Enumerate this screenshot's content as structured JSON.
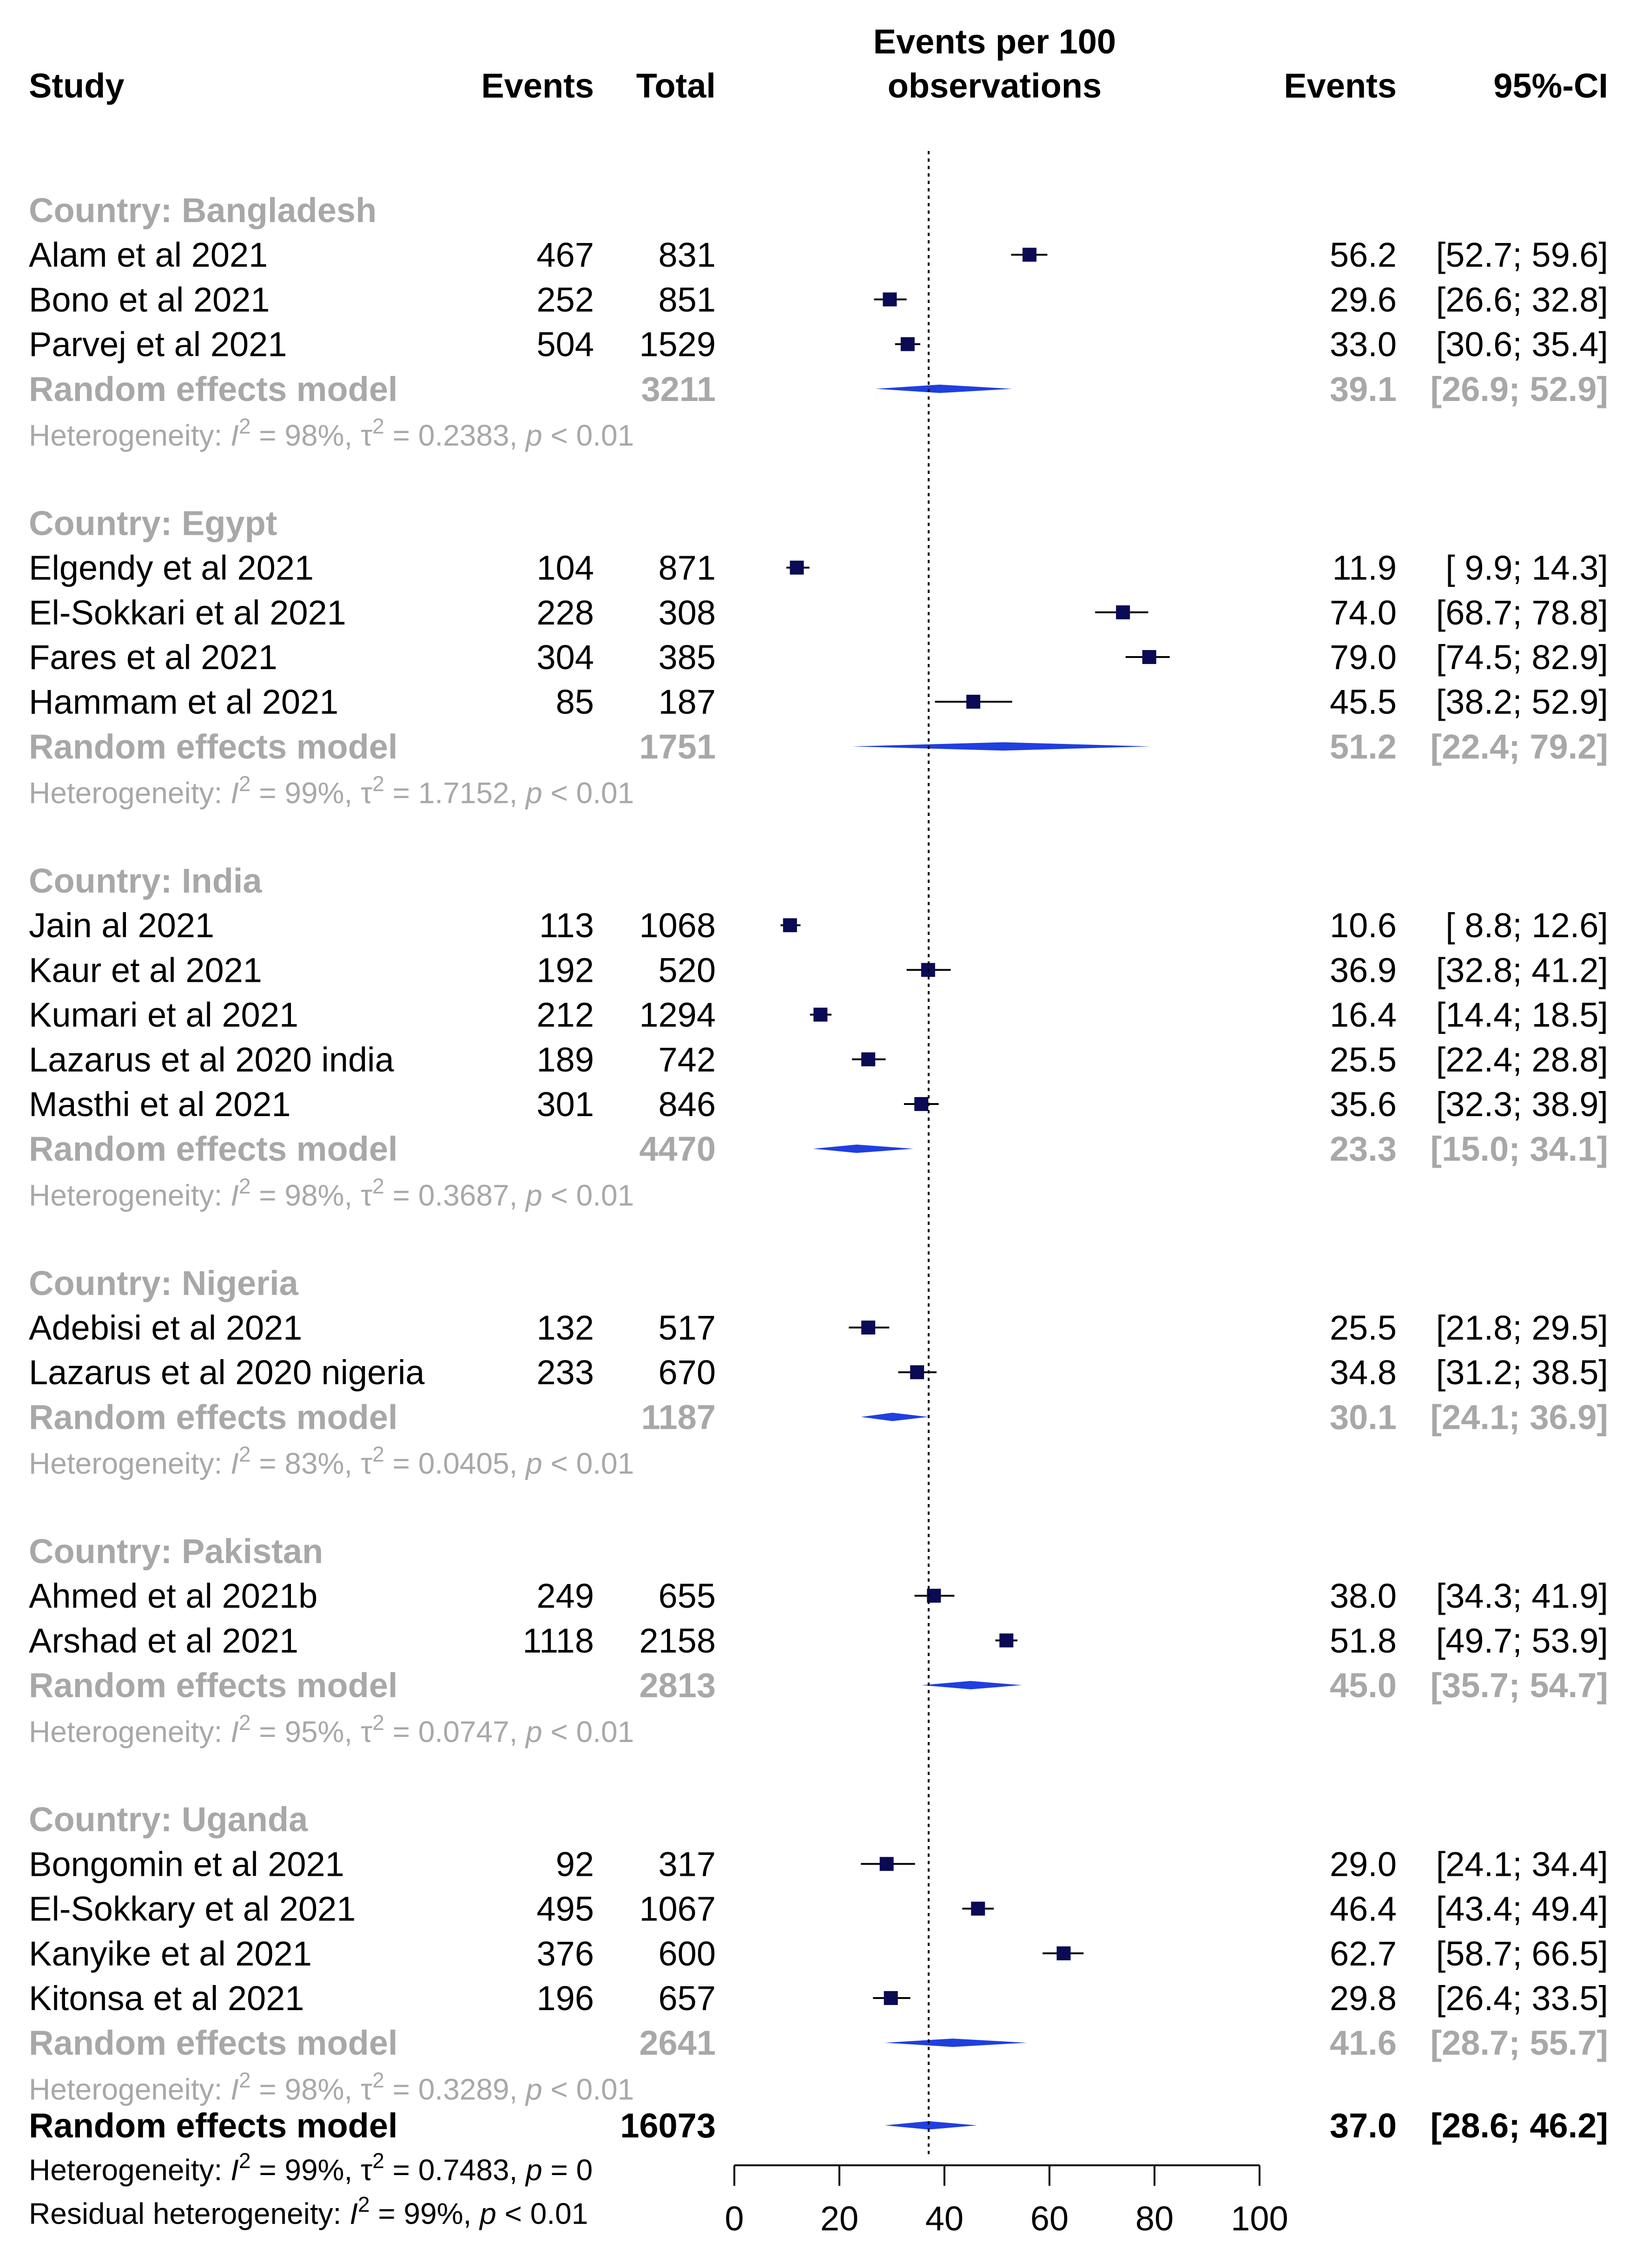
{
  "chart_data": {
    "type": "forest",
    "title": "Events per 100 observations",
    "columns": [
      "Study",
      "Events",
      "Total",
      "Events per 100 observations",
      "Events",
      "95%-CI"
    ],
    "xaxis": {
      "range": [
        0,
        100
      ],
      "ticks": [
        0,
        20,
        40,
        60,
        80,
        100
      ]
    },
    "reference_line": 37.0,
    "groups": [
      {
        "label": "Country: Bangladesh",
        "studies": [
          {
            "study": "Alam et al 2021",
            "events": 467,
            "total": 831,
            "est": 56.2,
            "lo": 52.7,
            "hi": 59.6,
            "events_txt": "56.2",
            "ci_txt": "[52.7; 59.6]"
          },
          {
            "study": "Bono et al 2021",
            "events": 252,
            "total": 851,
            "est": 29.6,
            "lo": 26.6,
            "hi": 32.8,
            "events_txt": "29.6",
            "ci_txt": "[26.6; 32.8]"
          },
          {
            "study": "Parvej et al 2021",
            "events": 504,
            "total": 1529,
            "est": 33.0,
            "lo": 30.6,
            "hi": 35.4,
            "events_txt": "33.0",
            "ci_txt": "[30.6; 35.4]"
          }
        ],
        "pooled": {
          "label": "Random effects model",
          "total": 3211,
          "est": 39.1,
          "lo": 26.9,
          "hi": 52.9,
          "events_txt": "39.1",
          "ci_txt": "[26.9; 52.9]"
        },
        "het": {
          "prefix": "Heterogeneity: ",
          "i2": "I",
          "sup": "2",
          "i2_rest": " = 98%, τ",
          "tau_rest": " = 0.2383, ",
          "p": "p",
          "p_rest": " < 0.01"
        }
      },
      {
        "label": "Country: Egypt",
        "studies": [
          {
            "study": "Elgendy et al 2021",
            "events": 104,
            "total": 871,
            "est": 11.9,
            "lo": 9.9,
            "hi": 14.3,
            "events_txt": "11.9",
            "ci_txt": "[ 9.9; 14.3]"
          },
          {
            "study": "El-Sokkari et al 2021",
            "events": 228,
            "total": 308,
            "est": 74.0,
            "lo": 68.7,
            "hi": 78.8,
            "events_txt": "74.0",
            "ci_txt": "[68.7; 78.8]"
          },
          {
            "study": "Fares et al 2021",
            "events": 304,
            "total": 385,
            "est": 79.0,
            "lo": 74.5,
            "hi": 82.9,
            "events_txt": "79.0",
            "ci_txt": "[74.5; 82.9]"
          },
          {
            "study": "Hammam et al 2021",
            "events": 85,
            "total": 187,
            "est": 45.5,
            "lo": 38.2,
            "hi": 52.9,
            "events_txt": "45.5",
            "ci_txt": "[38.2; 52.9]"
          }
        ],
        "pooled": {
          "label": "Random effects model",
          "total": 1751,
          "est": 51.2,
          "lo": 22.4,
          "hi": 79.2,
          "events_txt": "51.2",
          "ci_txt": "[22.4; 79.2]"
        },
        "het": {
          "prefix": "Heterogeneity: ",
          "i2": "I",
          "sup": "2",
          "i2_rest": " = 99%, τ",
          "tau_rest": " = 1.7152, ",
          "p": "p",
          "p_rest": " < 0.01"
        }
      },
      {
        "label": "Country: India",
        "studies": [
          {
            "study": "Jain al 2021",
            "events": 113,
            "total": 1068,
            "est": 10.6,
            "lo": 8.8,
            "hi": 12.6,
            "events_txt": "10.6",
            "ci_txt": "[ 8.8; 12.6]"
          },
          {
            "study": "Kaur et al 2021",
            "events": 192,
            "total": 520,
            "est": 36.9,
            "lo": 32.8,
            "hi": 41.2,
            "events_txt": "36.9",
            "ci_txt": "[32.8; 41.2]"
          },
          {
            "study": "Kumari et al 2021",
            "events": 212,
            "total": 1294,
            "est": 16.4,
            "lo": 14.4,
            "hi": 18.5,
            "events_txt": "16.4",
            "ci_txt": "[14.4; 18.5]"
          },
          {
            "study": "Lazarus et al 2020 india",
            "events": 189,
            "total": 742,
            "est": 25.5,
            "lo": 22.4,
            "hi": 28.8,
            "events_txt": "25.5",
            "ci_txt": "[22.4; 28.8]"
          },
          {
            "study": "Masthi et al 2021",
            "events": 301,
            "total": 846,
            "est": 35.6,
            "lo": 32.3,
            "hi": 38.9,
            "events_txt": "35.6",
            "ci_txt": "[32.3; 38.9]"
          }
        ],
        "pooled": {
          "label": "Random effects model",
          "total": 4470,
          "est": 23.3,
          "lo": 15.0,
          "hi": 34.1,
          "events_txt": "23.3",
          "ci_txt": "[15.0; 34.1]"
        },
        "het": {
          "prefix": "Heterogeneity: ",
          "i2": "I",
          "sup": "2",
          "i2_rest": " = 98%, τ",
          "tau_rest": " = 0.3687, ",
          "p": "p",
          "p_rest": " < 0.01"
        }
      },
      {
        "label": "Country: Nigeria",
        "studies": [
          {
            "study": "Adebisi et al 2021",
            "events": 132,
            "total": 517,
            "est": 25.5,
            "lo": 21.8,
            "hi": 29.5,
            "events_txt": "25.5",
            "ci_txt": "[21.8; 29.5]"
          },
          {
            "study": "Lazarus et al 2020 nigeria",
            "events": 233,
            "total": 670,
            "est": 34.8,
            "lo": 31.2,
            "hi": 38.5,
            "events_txt": "34.8",
            "ci_txt": "[31.2; 38.5]"
          }
        ],
        "pooled": {
          "label": "Random effects model",
          "total": 1187,
          "est": 30.1,
          "lo": 24.1,
          "hi": 36.9,
          "events_txt": "30.1",
          "ci_txt": "[24.1; 36.9]"
        },
        "het": {
          "prefix": "Heterogeneity: ",
          "i2": "I",
          "sup": "2",
          "i2_rest": " = 83%, τ",
          "tau_rest": " = 0.0405, ",
          "p": "p",
          "p_rest": " < 0.01"
        }
      },
      {
        "label": "Country: Pakistan",
        "studies": [
          {
            "study": "Ahmed et al 2021b",
            "events": 249,
            "total": 655,
            "est": 38.0,
            "lo": 34.3,
            "hi": 41.9,
            "events_txt": "38.0",
            "ci_txt": "[34.3; 41.9]"
          },
          {
            "study": "Arshad et al 2021",
            "events": 1118,
            "total": 2158,
            "est": 51.8,
            "lo": 49.7,
            "hi": 53.9,
            "events_txt": "51.8",
            "ci_txt": "[49.7; 53.9]"
          }
        ],
        "pooled": {
          "label": "Random effects model",
          "total": 2813,
          "est": 45.0,
          "lo": 35.7,
          "hi": 54.7,
          "events_txt": "45.0",
          "ci_txt": "[35.7; 54.7]"
        },
        "het": {
          "prefix": "Heterogeneity: ",
          "i2": "I",
          "sup": "2",
          "i2_rest": " = 95%, τ",
          "tau_rest": " = 0.0747, ",
          "p": "p",
          "p_rest": " < 0.01"
        }
      },
      {
        "label": "Country: Uganda",
        "studies": [
          {
            "study": "Bongomin et al 2021",
            "events": 92,
            "total": 317,
            "est": 29.0,
            "lo": 24.1,
            "hi": 34.4,
            "events_txt": "29.0",
            "ci_txt": "[24.1; 34.4]"
          },
          {
            "study": "El-Sokkary et al 2021",
            "events": 495,
            "total": 1067,
            "est": 46.4,
            "lo": 43.4,
            "hi": 49.4,
            "events_txt": "46.4",
            "ci_txt": "[43.4; 49.4]"
          },
          {
            "study": "Kanyike et al 2021",
            "events": 376,
            "total": 600,
            "est": 62.7,
            "lo": 58.7,
            "hi": 66.5,
            "events_txt": "62.7",
            "ci_txt": "[58.7; 66.5]"
          },
          {
            "study": "Kitonsa et al 2021",
            "events": 196,
            "total": 657,
            "est": 29.8,
            "lo": 26.4,
            "hi": 33.5,
            "events_txt": "29.8",
            "ci_txt": "[26.4; 33.5]"
          }
        ],
        "pooled": {
          "label": "Random effects model",
          "total": 2641,
          "est": 41.6,
          "lo": 28.7,
          "hi": 55.7,
          "events_txt": "41.6",
          "ci_txt": "[28.7; 55.7]"
        },
        "het": {
          "prefix": "Heterogeneity: ",
          "i2": "I",
          "sup": "2",
          "i2_rest": " = 98%, τ",
          "tau_rest": " = 0.3289, ",
          "p": "p",
          "p_rest": " < 0.01"
        }
      }
    ],
    "overall": {
      "label": "Random effects model",
      "total": 16073,
      "est": 37.0,
      "lo": 28.6,
      "hi": 46.2,
      "events_txt": "37.0",
      "ci_txt": "[28.6; 46.2]",
      "het": {
        "prefix": "Heterogeneity: ",
        "i2": "I",
        "sup": "2",
        "i2_rest": " = 99%, τ",
        "tau_rest": " = 0.7483, ",
        "p": "p",
        "p_rest": " = 0"
      },
      "resid": {
        "prefix": "Residual heterogeneity: ",
        "i2": "I",
        "sup": "2",
        "i2_rest": " = 99%, ",
        "p": "p",
        "p_rest": " < 0.01"
      }
    },
    "colors": {
      "square": "#0a0a55",
      "diamond": "#1f3fe0",
      "grey": "#a8a8a8",
      "line": "#000000"
    }
  }
}
